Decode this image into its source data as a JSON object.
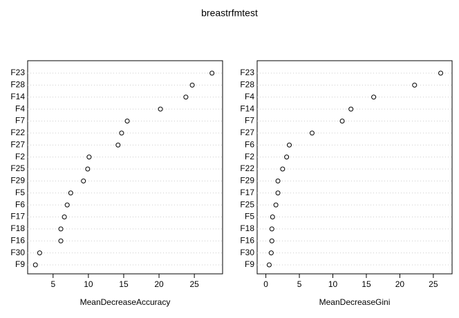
{
  "title": "breastrfmtest",
  "chart_data": [
    {
      "type": "dot",
      "xlabel": "MeanDecreaseAccuracy",
      "categories": [
        "F23",
        "F28",
        "F14",
        "F4",
        "F7",
        "F22",
        "F27",
        "F2",
        "F25",
        "F29",
        "F5",
        "F6",
        "F17",
        "F18",
        "F16",
        "F30",
        "F9"
      ],
      "values": [
        27.5,
        24.7,
        23.8,
        20.2,
        15.5,
        14.7,
        14.2,
        10.1,
        9.9,
        9.3,
        7.5,
        7.0,
        6.6,
        6.1,
        6.1,
        3.1,
        2.5
      ],
      "xlim": [
        1.4,
        29.0
      ],
      "xticks": [
        5,
        10,
        15,
        20,
        25
      ],
      "grid": true,
      "color": "#000000"
    },
    {
      "type": "dot",
      "xlabel": "MeanDecreaseGini",
      "categories": [
        "F23",
        "F28",
        "F4",
        "F14",
        "F7",
        "F27",
        "F6",
        "F2",
        "F22",
        "F29",
        "F17",
        "F25",
        "F5",
        "F18",
        "F16",
        "F30",
        "F9"
      ],
      "values": [
        26.1,
        22.2,
        16.1,
        12.7,
        11.4,
        6.9,
        3.5,
        3.1,
        2.5,
        1.8,
        1.8,
        1.5,
        1.0,
        0.9,
        0.9,
        0.8,
        0.5
      ],
      "xlim": [
        -1.3,
        27.8
      ],
      "xticks": [
        0,
        5,
        10,
        15,
        20,
        25
      ],
      "grid": true,
      "color": "#000000"
    }
  ]
}
